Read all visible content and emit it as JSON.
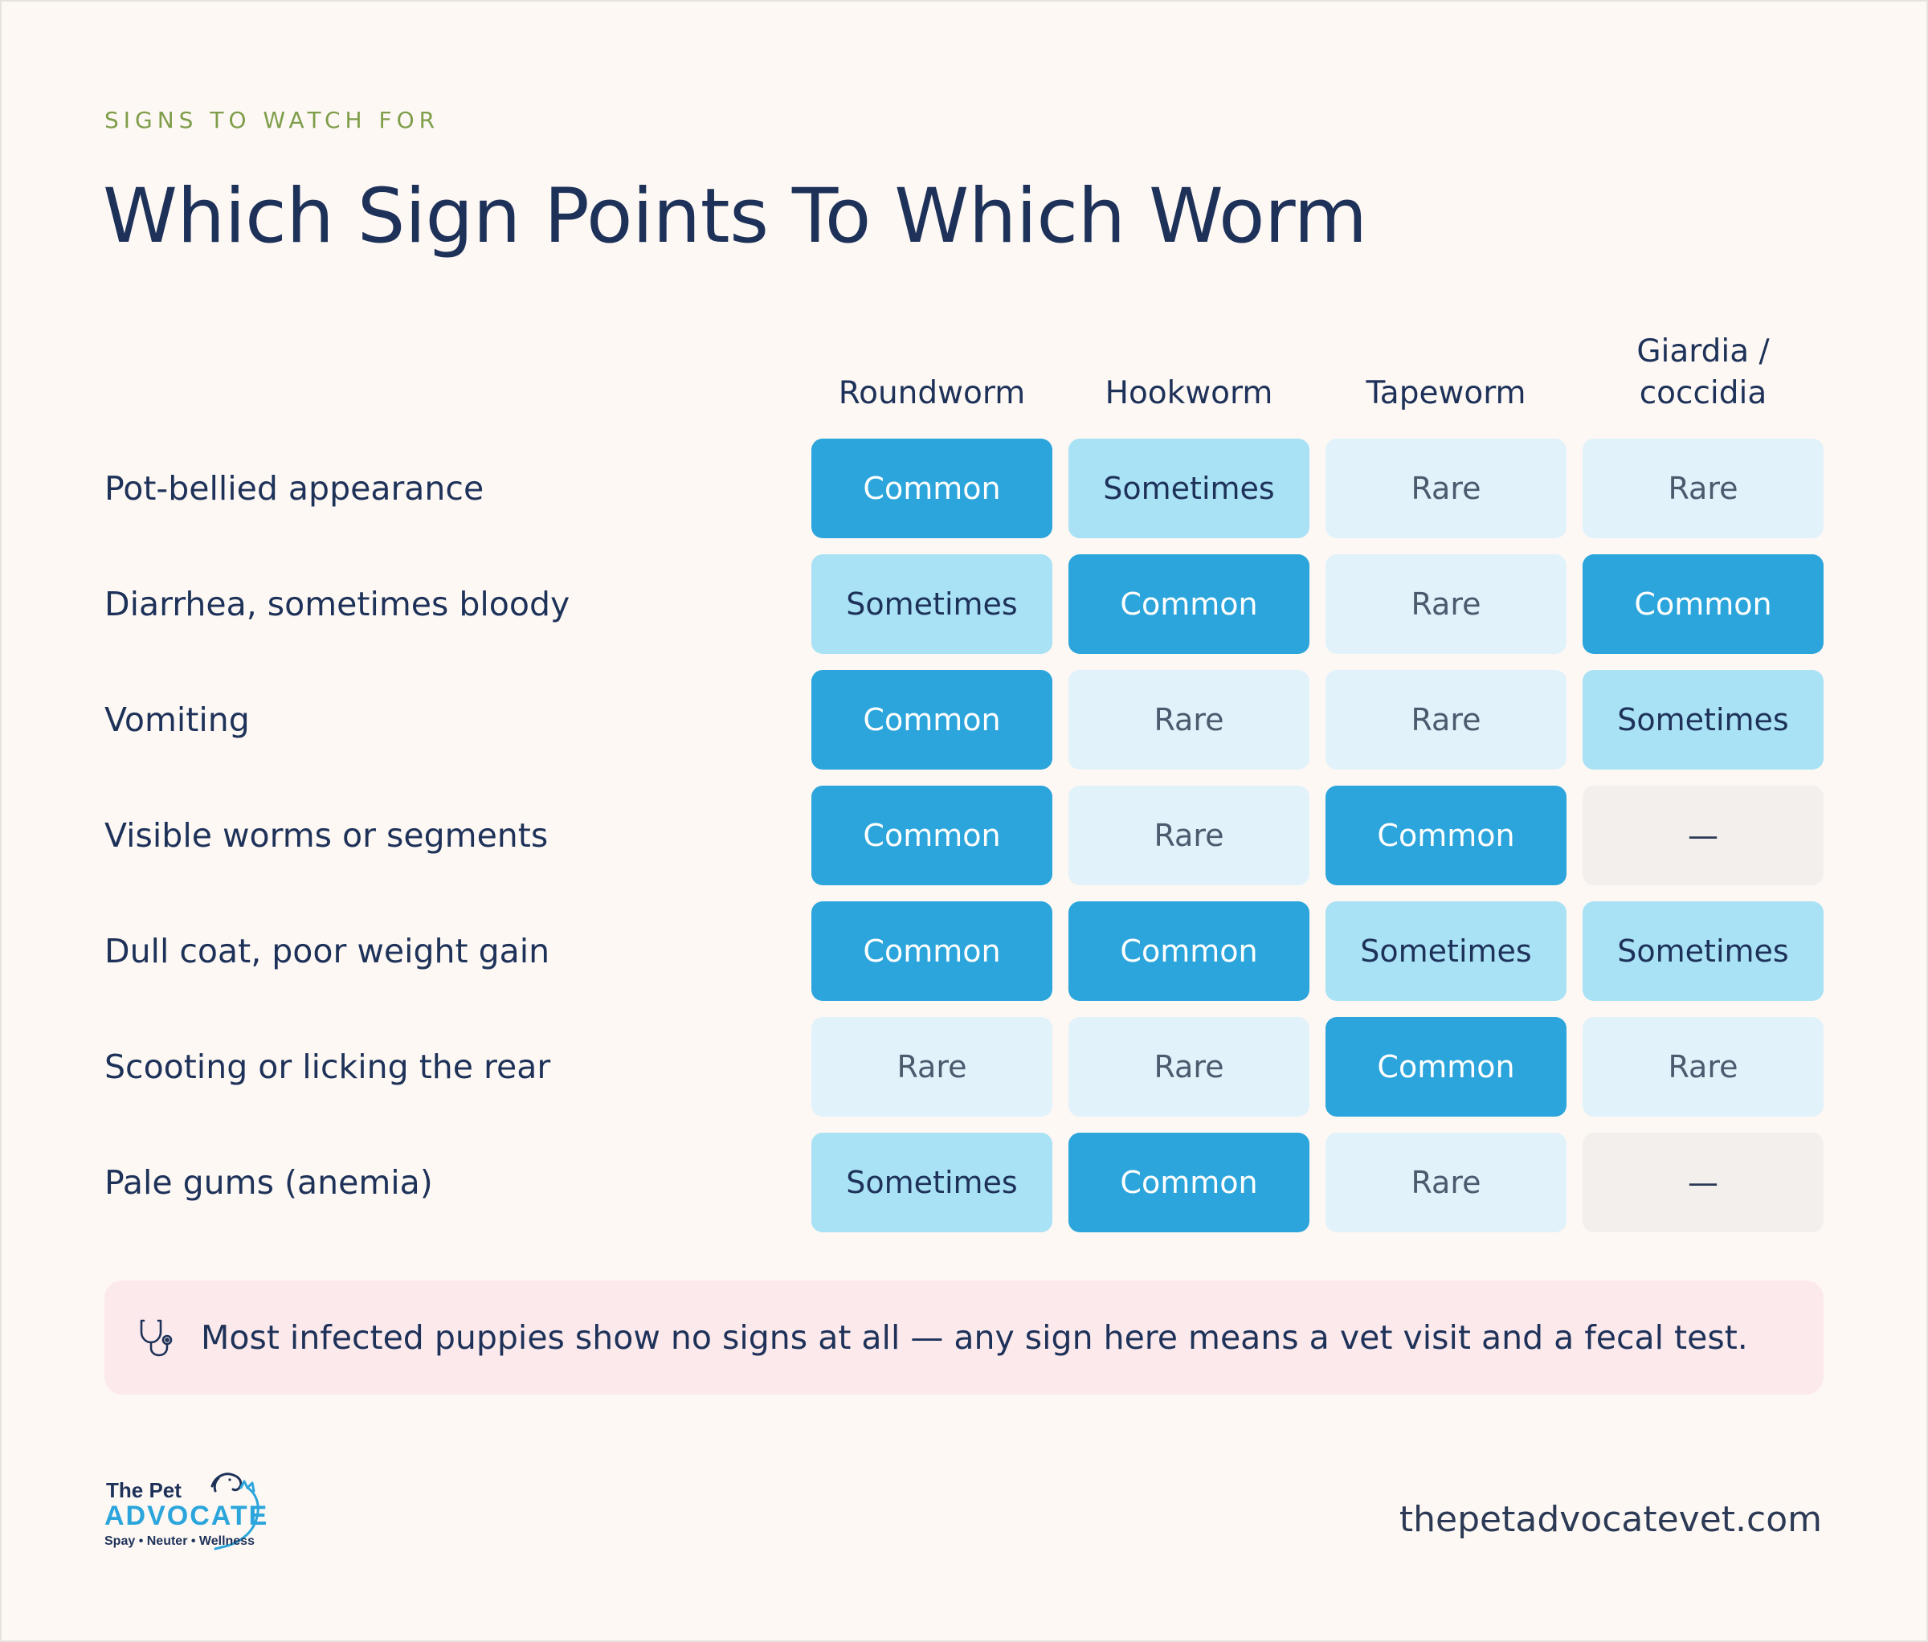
{
  "header": {
    "eyebrow": "SIGNS TO WATCH FOR",
    "title": "Which Sign Points To Which Worm"
  },
  "table": {
    "columns": [
      "Roundworm",
      "Hookworm",
      "Tapeworm",
      "Giardia /\ncoccidia"
    ],
    "rows": [
      {
        "label": "Pot-bellied appearance",
        "values": [
          "Common",
          "Sometimes",
          "Rare",
          "Rare"
        ]
      },
      {
        "label": "Diarrhea, sometimes bloody",
        "values": [
          "Sometimes",
          "Common",
          "Rare",
          "Common"
        ]
      },
      {
        "label": "Vomiting",
        "values": [
          "Common",
          "Rare",
          "Rare",
          "Sometimes"
        ]
      },
      {
        "label": "Visible worms or segments",
        "values": [
          "Common",
          "Rare",
          "Common",
          "—"
        ]
      },
      {
        "label": "Dull coat, poor weight gain",
        "values": [
          "Common",
          "Common",
          "Sometimes",
          "Sometimes"
        ]
      },
      {
        "label": "Scooting or licking the rear",
        "values": [
          "Rare",
          "Rare",
          "Common",
          "Rare"
        ]
      },
      {
        "label": "Pale gums (anemia)",
        "values": [
          "Sometimes",
          "Common",
          "Rare",
          "—"
        ]
      }
    ],
    "level_colors": {
      "Common": "#2ba5db",
      "Sometimes": "#a9e1f5",
      "Rare": "#e1f2fb",
      "—": "#f3efec"
    }
  },
  "note": {
    "icon": "stethoscope-icon",
    "text": "Most infected puppies show no signs at all — any sign here means a vet visit and a fecal test."
  },
  "footer": {
    "logo": {
      "line1": "The Pet",
      "line2": "ADVOCATE",
      "line3": "Spay • Neuter • Wellness"
    },
    "website": "thepetadvocatevet.com"
  }
}
